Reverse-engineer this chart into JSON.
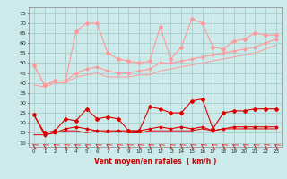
{
  "x": [
    0,
    1,
    2,
    3,
    4,
    5,
    6,
    7,
    8,
    9,
    10,
    11,
    12,
    13,
    14,
    15,
    16,
    17,
    18,
    19,
    20,
    21,
    22,
    23
  ],
  "rafales_max": [
    49,
    39,
    41,
    41,
    66,
    70,
    70,
    55,
    52,
    51,
    50,
    51,
    68,
    52,
    58,
    72,
    70,
    58,
    57,
    61,
    62,
    65,
    64,
    64
  ],
  "rafales_avg": [
    49,
    39,
    41,
    41,
    45,
    47,
    48,
    46,
    45,
    45,
    46,
    47,
    50,
    50,
    51,
    52,
    53,
    54,
    55,
    56,
    57,
    58,
    60,
    62
  ],
  "rafales_min": [
    39,
    38,
    40,
    40,
    43,
    44,
    45,
    43,
    43,
    43,
    44,
    44,
    46,
    47,
    48,
    49,
    50,
    51,
    52,
    53,
    54,
    55,
    57,
    59
  ],
  "vent_max": [
    24,
    15,
    16,
    22,
    21,
    27,
    22,
    23,
    22,
    16,
    16,
    28,
    27,
    25,
    25,
    31,
    32,
    17,
    25,
    26,
    26,
    27,
    27,
    27
  ],
  "vent_avg": [
    24,
    14,
    15,
    17,
    18,
    17,
    16,
    16,
    16,
    16,
    16,
    17,
    18,
    17,
    18,
    17,
    18,
    16,
    17,
    18,
    18,
    18,
    18,
    18
  ],
  "vent_min": [
    14,
    14,
    15,
    16,
    16,
    15,
    16,
    15,
    16,
    15,
    15,
    16,
    16,
    16,
    16,
    16,
    17,
    16,
    17,
    17,
    17,
    17,
    17,
    17
  ],
  "bg_color": "#cceaea",
  "grid_color": "#aacccc",
  "pink_color": "#ff9999",
  "red_color": "#dd0000",
  "xlabel": "Vent moyen/en rafales  ( km/h )",
  "xlabel_color": "#cc0000",
  "yticks": [
    10,
    15,
    20,
    25,
    30,
    35,
    40,
    45,
    50,
    55,
    60,
    65,
    70,
    75
  ],
  "xticks": [
    0,
    1,
    2,
    3,
    4,
    5,
    6,
    7,
    8,
    9,
    10,
    11,
    12,
    13,
    14,
    15,
    16,
    17,
    18,
    19,
    20,
    21,
    22,
    23
  ],
  "ylim": [
    8,
    78
  ],
  "xlim": [
    -0.5,
    23.5
  ]
}
